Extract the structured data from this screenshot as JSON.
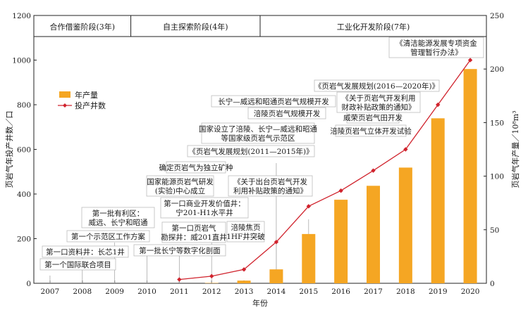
{
  "chart_data": {
    "type": "bar+line",
    "categories": [
      "2007",
      "2008",
      "2009",
      "2010",
      "2011",
      "2012",
      "2013",
      "2014",
      "2015",
      "2016",
      "2017",
      "2018",
      "2019",
      "2020"
    ],
    "series": [
      {
        "name": "年产量",
        "axis": "right",
        "kind": "bar",
        "color": "#f5a623",
        "values": [
          0,
          0,
          0,
          0,
          0,
          0.3,
          2.5,
          13,
          46,
          78,
          91,
          108,
          154,
          200
        ]
      },
      {
        "name": "投产井数",
        "axis": "left",
        "kind": "line",
        "color": "#d0232d",
        "values": [
          null,
          null,
          null,
          null,
          17,
          32,
          62,
          185,
          345,
          415,
          505,
          600,
          800,
          1000
        ]
      }
    ],
    "ylabel_left": "页岩气年投产井数／口",
    "ylabel_right": "页岩气年产量／10⁸m³",
    "xlabel": "年份",
    "ylim_left": [
      0,
      1200
    ],
    "ylim_right": [
      0,
      250
    ],
    "yticks_left": [
      "0",
      "200",
      "400",
      "600",
      "800",
      "1000",
      "1200"
    ],
    "yticks_right": [
      "0",
      "50",
      "100",
      "150",
      "200",
      "250"
    ],
    "stages": [
      {
        "label": "合作借鉴阶段(3年)"
      },
      {
        "label": "自主探索阶段(4年)"
      },
      {
        "label": "工业化开发阶段(7年)"
      }
    ],
    "legend": {
      "bar": "年产量",
      "line": "投产井数"
    },
    "annotations": [
      {
        "lines": [
          "第一个国际联合项目"
        ]
      },
      {
        "lines": [
          "第一口资料井：长芯1井"
        ]
      },
      {
        "lines": [
          "第一个示范区工作方案"
        ]
      },
      {
        "lines": [
          "第一批有利区：",
          "威远、长宁和昭通"
        ]
      },
      {
        "lines": [
          "第一批长宁等数字化剖面"
        ]
      },
      {
        "lines": [
          "第一口页岩气",
          "勘探井：威201直井"
        ]
      },
      {
        "lines": [
          "第一口商业开发价值井：",
          "宁201-H1水平井"
        ]
      },
      {
        "lines": [
          "国家能源页岩气研发",
          "(实验)中心成立"
        ]
      },
      {
        "lines": [
          "确定页岩气为独立矿种"
        ]
      },
      {
        "lines": [
          "涪陵焦页",
          "1HF井突破"
        ]
      },
      {
        "lines": [
          "《页岩气发展规划(2011—2015年)》"
        ]
      },
      {
        "lines": [
          "国家设立了涪陵、长宁—威远和昭通",
          "等国家级页岩气示范区"
        ]
      },
      {
        "lines": [
          "《关于出台页岩气开发",
          "利用补贴政策的通知》"
        ]
      },
      {
        "lines": [
          "涪陵页岩气规模开发"
        ]
      },
      {
        "lines": [
          "长宁—威远和昭通页岩气规模开发"
        ]
      },
      {
        "lines": [
          "涪陵页岩气立体开发试验"
        ]
      },
      {
        "lines": [
          "威荣页岩气田开发"
        ]
      },
      {
        "lines": [
          "《关于页岩气开发利用",
          "财政补贴政策的通知》"
        ]
      },
      {
        "lines": [
          "《页岩气发展规划(2016—2020年)》"
        ]
      },
      {
        "lines": [
          "《清洁能源发展专项资金",
          "管理暂行办法》"
        ]
      }
    ]
  }
}
